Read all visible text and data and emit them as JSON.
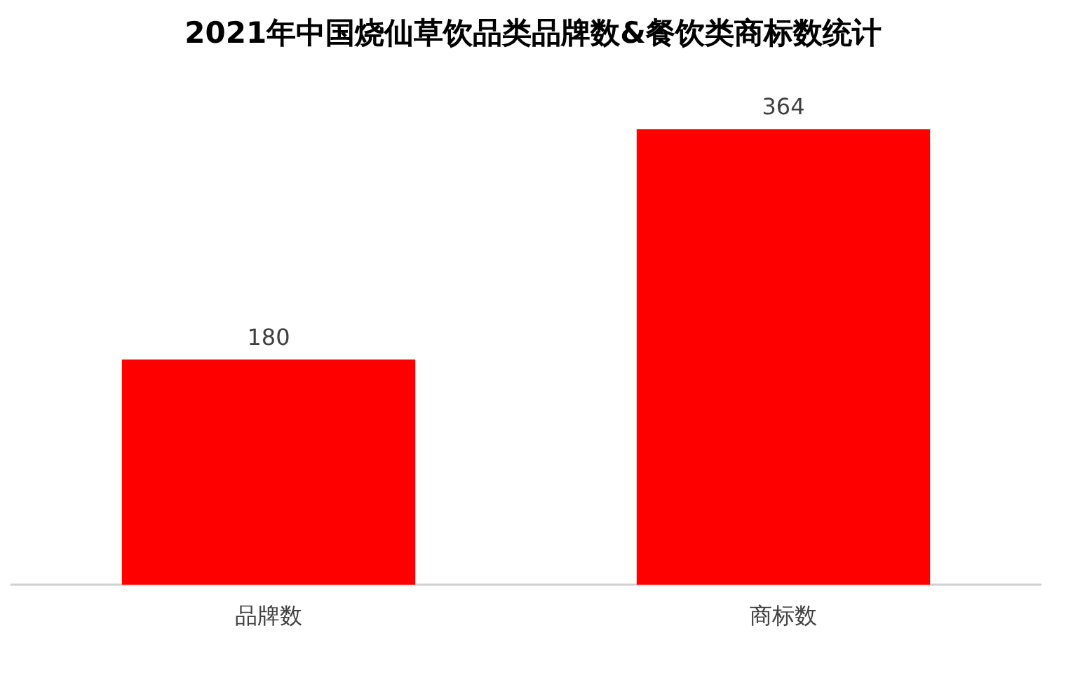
{
  "chart_data": {
    "type": "bar",
    "title": "2021年中国烧仙草饮品类品牌数&餐饮类商标数统计",
    "categories": [
      "品牌数",
      "商标数"
    ],
    "values": [
      180,
      364
    ],
    "color": "#ff0000",
    "data_labels": true
  }
}
